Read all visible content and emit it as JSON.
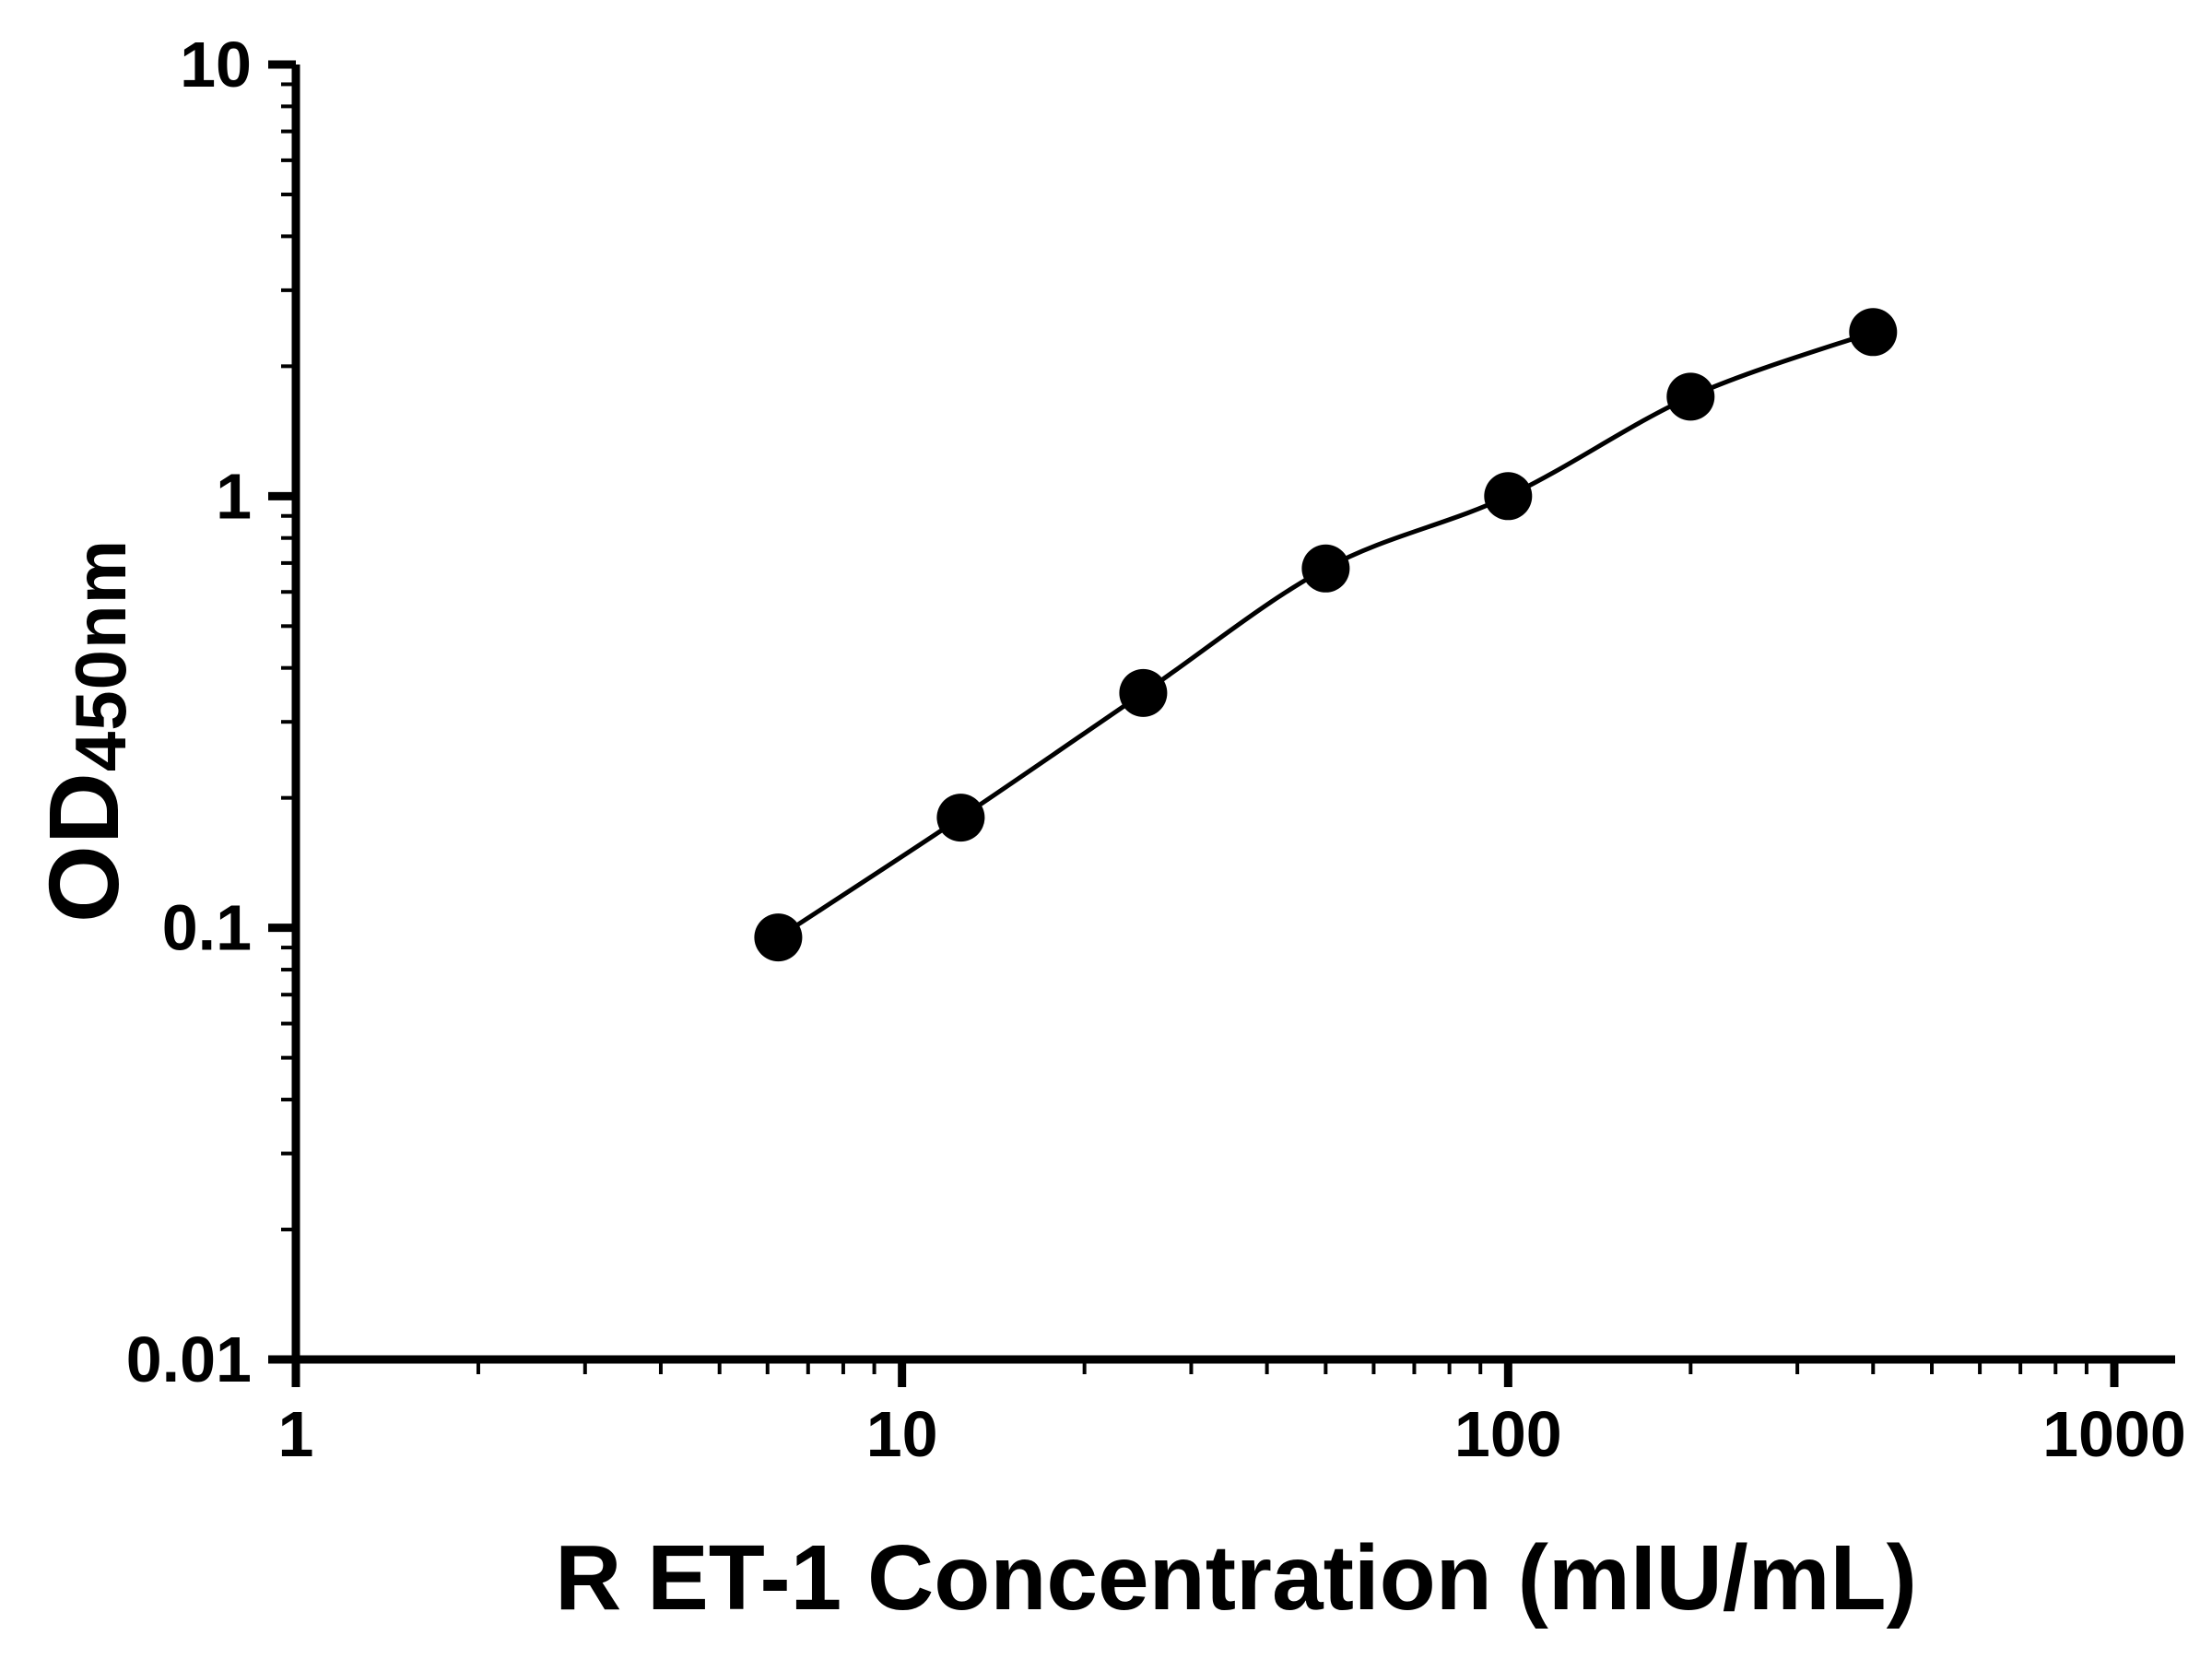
{
  "chart_data": {
    "type": "line",
    "markers": true,
    "x": [
      6.25,
      12.5,
      25,
      50,
      100,
      200,
      400
    ],
    "y": [
      0.095,
      0.18,
      0.35,
      0.68,
      1.0,
      1.7,
      2.4
    ],
    "xlabel": "R ET-1 Concentration (mIU/mL)",
    "ylabel": "OD450nm",
    "ylabel_parts": {
      "main": "OD",
      "sub": "450nm"
    },
    "x_scale": "log",
    "y_scale": "log",
    "xlim": [
      1,
      1000
    ],
    "ylim": [
      0.01,
      10
    ],
    "x_tick_values": [
      1,
      10,
      100,
      1000
    ],
    "x_tick_labels": [
      "1",
      "10",
      "100",
      "1000"
    ],
    "y_tick_values": [
      0.01,
      0.1,
      1,
      10
    ],
    "y_tick_labels": [
      "0.01",
      "0.1",
      "1",
      "10"
    ],
    "grid": false,
    "legend": "none",
    "marker": {
      "shape": "circle",
      "color": "#000000"
    },
    "line": {
      "color": "#000000"
    },
    "axis_color": "#000000",
    "background": "#ffffff"
  }
}
